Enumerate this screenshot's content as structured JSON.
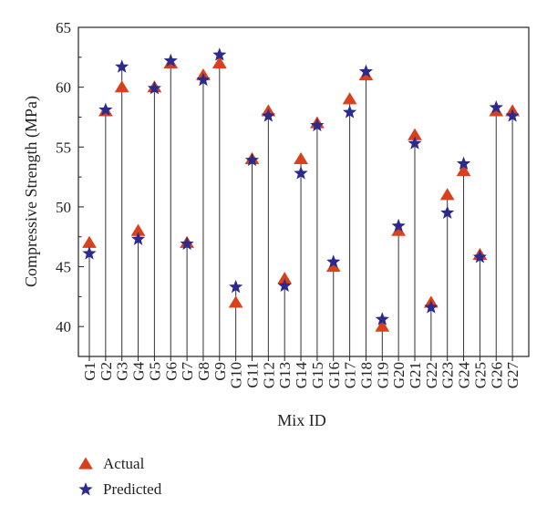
{
  "chart_data": {
    "type": "scatter",
    "title": "",
    "xlabel": "Mix ID",
    "ylabel": "Compressive Strength (MPa)",
    "ylim": [
      37.5,
      65
    ],
    "yticks": [
      40,
      45,
      50,
      55,
      60,
      65
    ],
    "grid": false,
    "legend_position": "bottom-left",
    "categories": [
      "G1",
      "G2",
      "G3",
      "G4",
      "G5",
      "G6",
      "G7",
      "G8",
      "G9",
      "G10",
      "G11",
      "G12",
      "G13",
      "G14",
      "G15",
      "G16",
      "G17",
      "G18",
      "G19",
      "G20",
      "G21",
      "G22",
      "G23",
      "G24",
      "G25",
      "G26",
      "G27"
    ],
    "series": [
      {
        "name": "Actual",
        "marker": "triangle",
        "color": "#d9401c",
        "values": [
          47,
          58,
          60,
          48,
          60,
          62,
          47,
          61,
          62,
          42,
          54,
          58,
          44,
          54,
          57,
          45,
          59,
          61,
          40,
          48,
          56,
          42,
          51,
          53,
          46,
          58,
          58
        ]
      },
      {
        "name": "Predicted",
        "marker": "star",
        "color": "#2c2a8e",
        "values": [
          46.1,
          58.1,
          61.7,
          47.3,
          59.9,
          62.2,
          46.9,
          60.6,
          62.7,
          43.3,
          53.9,
          57.6,
          43.4,
          52.8,
          56.8,
          45.4,
          57.9,
          61.3,
          40.6,
          48.4,
          55.3,
          41.6,
          49.5,
          53.6,
          45.8,
          58.3,
          57.6
        ]
      }
    ],
    "stem_color": "#333333"
  }
}
